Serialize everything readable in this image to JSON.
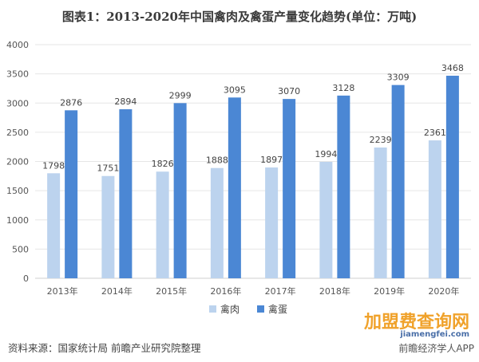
{
  "title": "图表1：2013-2020年中国禽肉及禽蛋产量变化趋势(单位：万吨)",
  "source": "资料来源：国家统计局 前瞻产业研究院整理",
  "watermark": {
    "brand": "加盟费查询网",
    "site": "jiamengfei.com",
    "app": "前瞻经济学人APP"
  },
  "chart_data": {
    "type": "bar",
    "title": "图表1：2013-2020年中国禽肉及禽蛋产量变化趋势(单位：万吨)",
    "categories": [
      "2013年",
      "2014年",
      "2015年",
      "2016年",
      "2017年",
      "2018年",
      "2019年",
      "2020年"
    ],
    "series": [
      {
        "name": "禽肉",
        "values": [
          1798,
          1751,
          1826,
          1888,
          1897,
          1994,
          2239,
          2361
        ],
        "color": "#bcd3ee"
      },
      {
        "name": "禽蛋",
        "values": [
          2876,
          2894,
          2999,
          3095,
          3070,
          3128,
          3309,
          3468
        ],
        "color": "#4b87d4"
      }
    ],
    "ylim": [
      0,
      4000
    ],
    "yticks": [
      0,
      500,
      1000,
      1500,
      2000,
      2500,
      3000,
      3500,
      4000
    ],
    "grid": true,
    "legend": "bottom-center",
    "xlabel": "",
    "ylabel": ""
  }
}
